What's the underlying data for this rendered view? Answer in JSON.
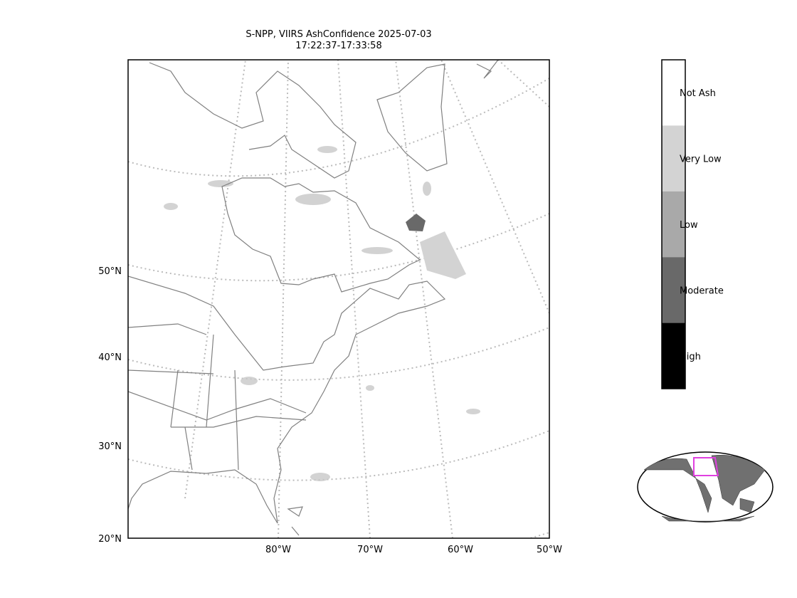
{
  "title": "S-NPP, VIIRS AshConfidence 2025-07-03",
  "subtitle": "17:22:37-17:33:58",
  "lat_labels": [
    "50°N",
    "40°N",
    "30°N",
    "20°N"
  ],
  "lon_labels": [
    "80°W",
    "70°W",
    "60°W",
    "50°W"
  ],
  "legend": {
    "items": [
      {
        "label": "Not Ash",
        "color": "#ffffff"
      },
      {
        "label": "Very Low",
        "color": "#d3d3d3"
      },
      {
        "label": "Low",
        "color": "#a9a9a9"
      },
      {
        "label": "Moderate",
        "color": "#696969"
      },
      {
        "label": "High",
        "color": "#000000"
      }
    ]
  }
}
